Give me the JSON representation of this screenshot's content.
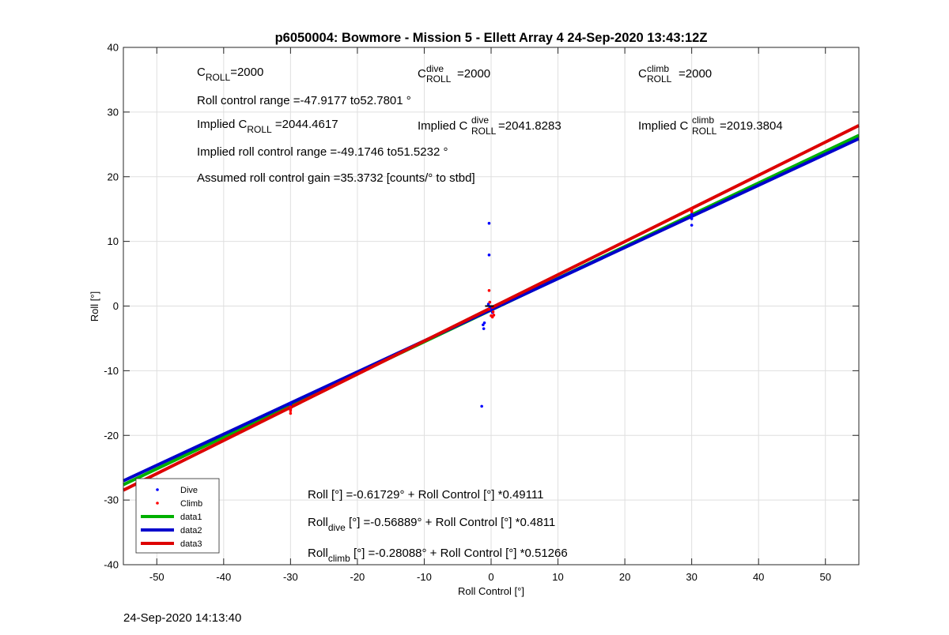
{
  "chart_data": {
    "type": "scatter",
    "title": "p6050004: Bowmore - Mission 5 - Ellett Array 4 24-Sep-2020 13:43:12Z",
    "xlabel": "Roll Control [°]",
    "ylabel": "Roll [°]",
    "xlim": [
      -55,
      55
    ],
    "ylim": [
      -40,
      40
    ],
    "xticks": [
      -50,
      -40,
      -30,
      -20,
      -10,
      0,
      10,
      20,
      30,
      40,
      50
    ],
    "yticks": [
      -40,
      -30,
      -20,
      -10,
      0,
      10,
      20,
      30,
      40
    ],
    "grid": true,
    "legend_position": "bottom-left",
    "series": [
      {
        "name": "Dive",
        "kind": "points",
        "color": "#0000ff",
        "points": [
          [
            -30,
            -15.0
          ],
          [
            -30,
            -15.4
          ],
          [
            -30,
            -15.8
          ],
          [
            -30,
            -16.0
          ],
          [
            -1.2,
            -2.9
          ],
          [
            -1.1,
            -3.5
          ],
          [
            -1.0,
            -2.6
          ],
          [
            -1.4,
            -15.5
          ],
          [
            -0.3,
            12.8
          ],
          [
            -0.3,
            7.9
          ],
          [
            -0.2,
            -0.3
          ],
          [
            0,
            -0.6
          ],
          [
            0.2,
            -1.0
          ],
          [
            -0.4,
            0.3
          ],
          [
            30,
            12.5
          ],
          [
            30,
            13.5
          ],
          [
            30,
            13.9
          ],
          [
            30,
            14.2
          ]
        ]
      },
      {
        "name": "Climb",
        "kind": "points",
        "color": "#ff0000",
        "points": [
          [
            -30,
            -15.6
          ],
          [
            -30,
            -16.2
          ],
          [
            -30,
            -16.6
          ],
          [
            -30,
            -15.9
          ],
          [
            -0.3,
            2.4
          ],
          [
            -0.2,
            0.6
          ],
          [
            0,
            -1.5
          ],
          [
            0.2,
            -1.7
          ],
          [
            0.4,
            -1.4
          ],
          [
            -0.3,
            -0.5
          ],
          [
            0.3,
            -0.9
          ],
          [
            30,
            14.8
          ],
          [
            30,
            15.0
          ],
          [
            30,
            14.6
          ]
        ]
      },
      {
        "name": "data1",
        "kind": "line",
        "color": "#00b000",
        "intercept": -0.61729,
        "slope": 0.49111
      },
      {
        "name": "data2",
        "kind": "line",
        "color": "#0000cc",
        "intercept": -0.56889,
        "slope": 0.4811
      },
      {
        "name": "data3",
        "kind": "line",
        "color": "#dd0000",
        "intercept": -0.28088,
        "slope": 0.51266
      }
    ],
    "annotations": {
      "c_roll_base": "C",
      "roll_sub": "ROLL",
      "dive_sup": "dive",
      "climb_sup": "climb",
      "c_roll_value": "=2000",
      "c_roll_dive_value": "=2000",
      "c_roll_climb_value": "=2000",
      "roll_control_range": "Roll control range =-47.9177 to52.7801 °",
      "implied_prefix": "Implied C",
      "implied_c_roll_value": " =2044.4617",
      "implied_c_roll_dive_value": " =2041.8283",
      "implied_c_roll_climb_value": " =2019.3804",
      "implied_roll_range": "Implied roll control range =-49.1746 to51.5232 °",
      "assumed_gain": "Assumed roll control gain =35.3732 [counts/° to stbd]",
      "fit_all": "Roll [°] =-0.61729° + Roll Control [°] *0.49111",
      "fit_dive_head": "Roll",
      "fit_dive_sub": "dive",
      "fit_dive_tail": " [°] =-0.56889° + Roll Control [°] *0.4811",
      "fit_climb_head": "Roll",
      "fit_climb_sub": "climb",
      "fit_climb_tail": " [°] =-0.28088° + Roll Control [°] *0.51266"
    }
  },
  "footer": {
    "timestamp": "24-Sep-2020 14:13:40"
  }
}
